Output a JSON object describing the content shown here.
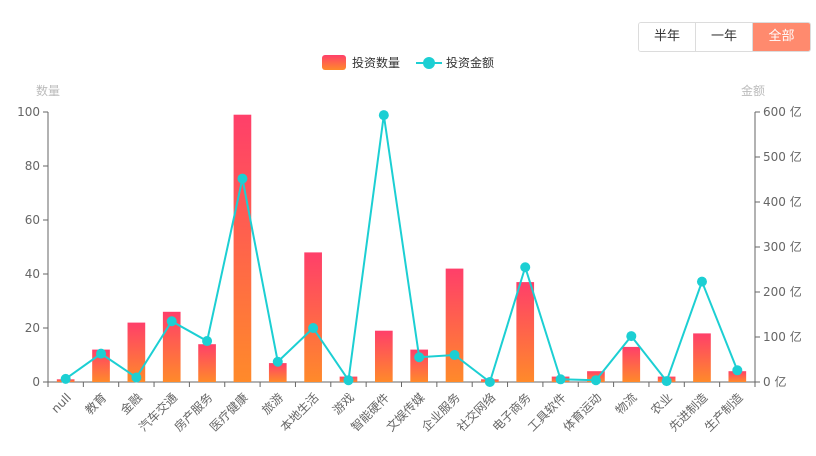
{
  "range_tabs": {
    "items": [
      "半年",
      "一年",
      "全部"
    ],
    "active": 2
  },
  "colors": {
    "bar_top": "#ff3f6a",
    "bar_bottom": "#ff8a2a",
    "line": "#1ccfd3",
    "axis": "#666666",
    "axis_title": "#bbbbbb",
    "tab_active_bg": "#ff8a6e"
  },
  "chart_data": {
    "type": "bar",
    "categories": [
      "null",
      "教育",
      "金融",
      "汽车交通",
      "房产服务",
      "医疗健康",
      "旅游",
      "本地生活",
      "游戏",
      "智能硬件",
      "文娱传媒",
      "企业服务",
      "社交网络",
      "电子商务",
      "工具软件",
      "体育运动",
      "物流",
      "农业",
      "先进制造",
      "生产制造"
    ],
    "series": [
      {
        "name": "投资数量",
        "type": "bar",
        "axis": "left",
        "values": [
          1,
          12,
          22,
          26,
          14,
          99,
          7,
          48,
          2,
          19,
          12,
          42,
          1,
          37,
          2,
          4,
          13,
          2,
          18,
          4
        ]
      },
      {
        "name": "投资金额",
        "type": "line",
        "axis": "right",
        "values": [
          7,
          63,
          10,
          135,
          91,
          452,
          45,
          120,
          4,
          593,
          55,
          60,
          0,
          255,
          6,
          4,
          102,
          2,
          223,
          26
        ]
      }
    ],
    "y_left": {
      "label": "数量",
      "min": 0,
      "max": 100,
      "ticks": [
        "0",
        "20",
        "40",
        "60",
        "80",
        "100"
      ]
    },
    "y_right": {
      "label": "金额",
      "min": 0,
      "max": 600,
      "ticks": [
        "0 亿",
        "100 亿",
        "200 亿",
        "300 亿",
        "400 亿",
        "500 亿",
        "600 亿"
      ]
    },
    "legend": {
      "position": "top-center"
    },
    "grid": false
  }
}
